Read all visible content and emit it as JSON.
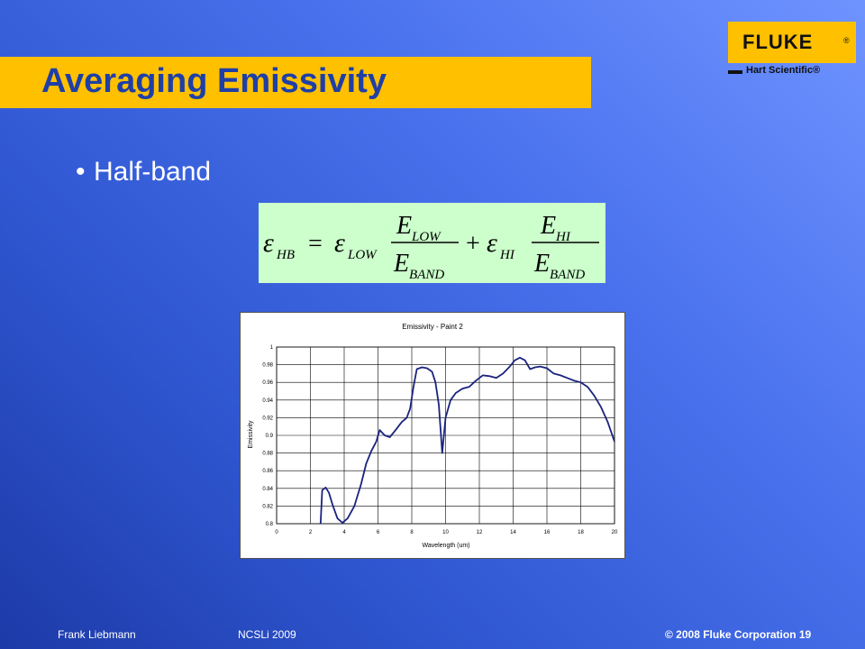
{
  "header": {
    "title": "Averaging Emissivity"
  },
  "logo": {
    "brand": "FLUKE",
    "registered": "®",
    "sub": "Hart Scientific®"
  },
  "content": {
    "bullet_char": "•",
    "bullet_text": "Half-band",
    "formula": {
      "lhs": "ε",
      "lhs_sub": "HB",
      "eq": "=",
      "t1_eps": "ε",
      "t1_sub": "LOW",
      "t1_num": "E",
      "t1_num_sub": "LOW",
      "t1_den": "E",
      "t1_den_sub": "BAND",
      "plus": "+",
      "t2_eps": "ε",
      "t2_sub": "HI",
      "t2_num": "E",
      "t2_num_sub": "HI",
      "t2_den": "E",
      "t2_den_sub": "BAND"
    }
  },
  "chart_data": {
    "type": "line",
    "title": "Emissivity - Paint 2",
    "xlabel": "Wavelength (um)",
    "ylabel": "Emissivity",
    "xlim": [
      0,
      20
    ],
    "ylim": [
      0.8,
      1.0
    ],
    "xticks": [
      0,
      2,
      4,
      6,
      8,
      10,
      12,
      14,
      16,
      18,
      20
    ],
    "yticks": [
      0.8,
      0.82,
      0.84,
      0.86,
      0.88,
      0.9,
      0.92,
      0.94,
      0.96,
      0.98,
      1
    ],
    "xtick_labels": [
      "0",
      "2",
      "4",
      "6",
      "8",
      "10",
      "12",
      "14",
      "16",
      "18",
      "20"
    ],
    "ytick_labels": [
      "0.8",
      "0.82",
      "0.84",
      "0.86",
      "0.88",
      "0.9",
      "0.92",
      "0.94",
      "0.96",
      "0.98",
      "1"
    ],
    "grid": true,
    "line_color": "#1a237e",
    "series": [
      {
        "x": [
          2.6,
          2.7,
          2.9,
          3.1,
          3.3,
          3.6,
          3.9,
          4.2,
          4.6,
          5.0,
          5.3,
          5.6,
          5.9,
          6.1,
          6.4,
          6.7,
          7.0,
          7.4,
          7.7,
          7.9,
          8.1,
          8.3,
          8.6,
          8.9,
          9.2,
          9.4,
          9.6,
          9.8,
          10.0,
          10.3,
          10.6,
          11.0,
          11.4,
          11.8,
          12.2,
          12.6,
          13.0,
          13.4,
          13.8,
          14.1,
          14.4,
          14.7,
          15.0,
          15.3,
          15.6,
          16.0,
          16.4,
          16.8,
          17.2,
          17.6,
          18.0,
          18.4,
          18.8,
          19.2,
          19.6,
          20.0
        ],
        "y": [
          0.8,
          0.838,
          0.841,
          0.835,
          0.822,
          0.806,
          0.801,
          0.806,
          0.82,
          0.845,
          0.868,
          0.882,
          0.893,
          0.906,
          0.9,
          0.898,
          0.905,
          0.915,
          0.92,
          0.93,
          0.955,
          0.975,
          0.977,
          0.976,
          0.972,
          0.96,
          0.935,
          0.88,
          0.92,
          0.94,
          0.948,
          0.953,
          0.955,
          0.962,
          0.968,
          0.967,
          0.965,
          0.97,
          0.978,
          0.985,
          0.988,
          0.985,
          0.975,
          0.977,
          0.978,
          0.976,
          0.97,
          0.968,
          0.965,
          0.962,
          0.96,
          0.955,
          0.945,
          0.932,
          0.915,
          0.893
        ]
      }
    ]
  },
  "footer": {
    "author": "Frank Liebmann",
    "event": "NCSLi 2009",
    "copyright": "© 2008 Fluke Corporation 19"
  }
}
